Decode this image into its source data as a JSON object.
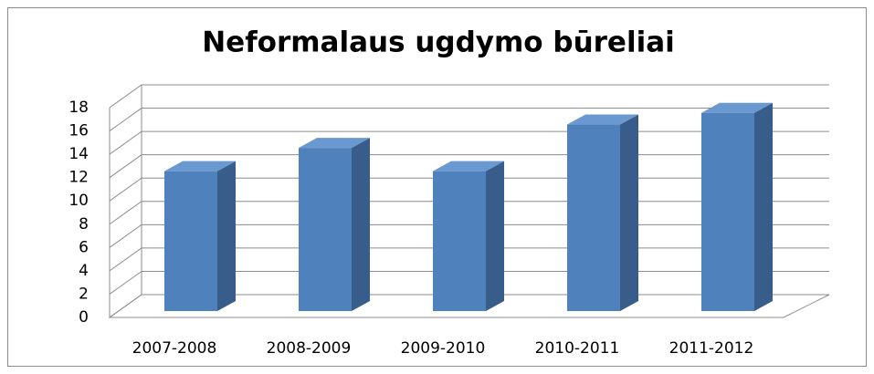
{
  "chart_data": {
    "type": "bar3d",
    "title": "Neformalaus ugdymo būreliai",
    "categories": [
      "2007-2008",
      "2008-2009",
      "2009-2010",
      "2010-2011",
      "2011-2012"
    ],
    "values": [
      12,
      14,
      12,
      16,
      17
    ],
    "color": "#4f81bd",
    "ylim": [
      0,
      18
    ],
    "yticks": [
      0,
      2,
      4,
      6,
      8,
      10,
      12,
      14,
      16,
      18
    ],
    "grid": true
  }
}
